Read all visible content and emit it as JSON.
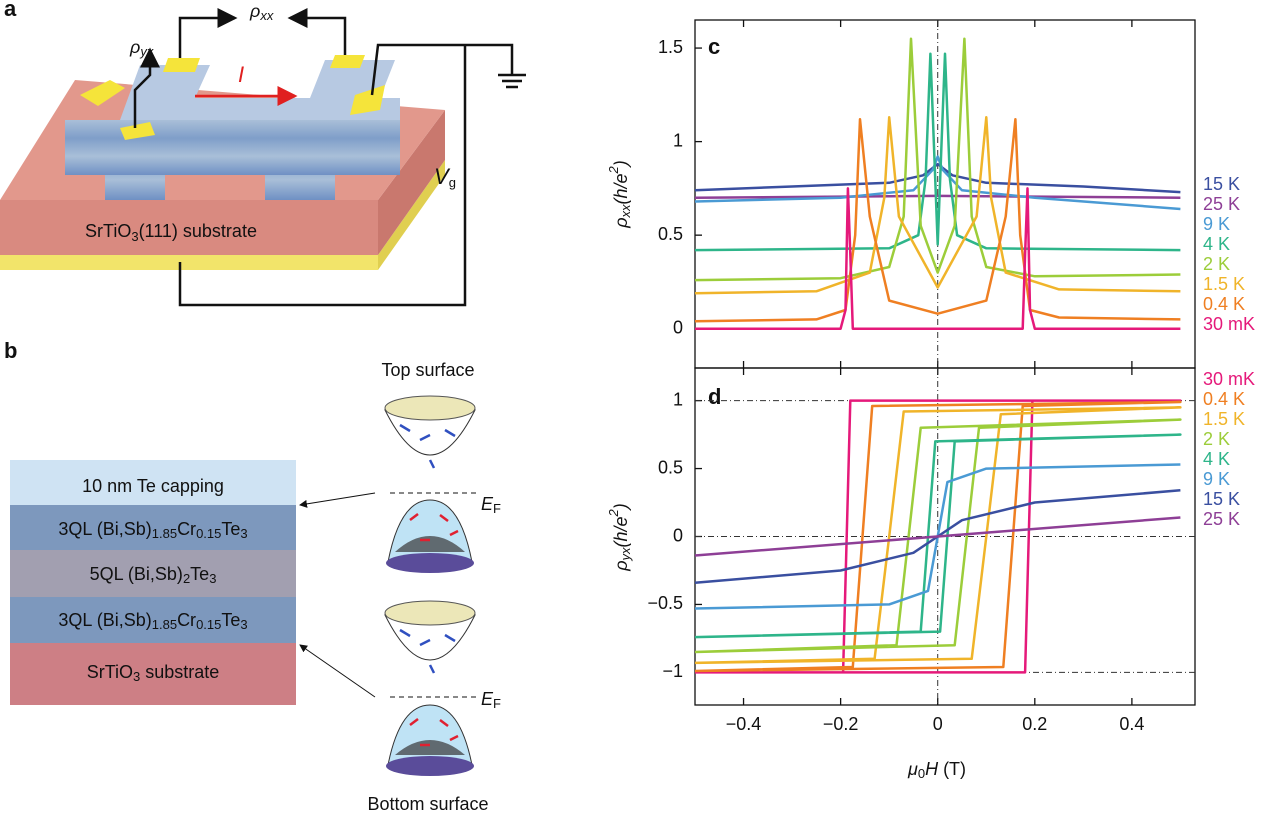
{
  "panel_a": {
    "label": "a",
    "rho_yx": [
      "ρ",
      "yx"
    ],
    "rho_xx": [
      "ρ",
      "xx"
    ],
    "current": "I",
    "gate": [
      "V",
      "g"
    ],
    "substrate": [
      "SrTiO",
      "3",
      "(111) substrate"
    ]
  },
  "panel_b": {
    "label": "b",
    "layers": [
      [
        "10 nm Te capping"
      ],
      [
        "3QL (Bi,Sb)",
        "1.85",
        "Cr",
        "0.15",
        "Te",
        "3"
      ],
      [
        "5QL (Bi,Sb)",
        "2",
        "Te",
        "3"
      ],
      [
        "3QL (Bi,Sb)",
        "1.85",
        "Cr",
        "0.15",
        "Te",
        "3"
      ],
      [
        "SrTiO",
        "3",
        " substrate"
      ]
    ],
    "top_surface": "Top surface",
    "bottom_surface": "Bottom surface",
    "fermi_top": [
      "E",
      "F"
    ],
    "fermi_bottom": [
      "E",
      "F"
    ]
  },
  "chart_data": [
    {
      "type": "line",
      "panel": "c",
      "ylabel": [
        "ρ",
        "xx",
        "(h/e",
        "2",
        ")"
      ],
      "xlim": [
        -0.5,
        0.53
      ],
      "ylim": [
        -0.21,
        1.65
      ],
      "yticks": [
        0,
        0.5,
        1,
        1.5
      ],
      "vline": 0,
      "series": [
        {
          "name": "15 K",
          "color": "#3a4fa0",
          "x": [
            -0.5,
            -0.3,
            -0.1,
            -0.03,
            0,
            0.03,
            0.1,
            0.3,
            0.5
          ],
          "values": [
            0.74,
            0.76,
            0.78,
            0.82,
            0.88,
            0.82,
            0.78,
            0.76,
            0.73
          ]
        },
        {
          "name": "25 K",
          "color": "#8e3f96",
          "x": [
            -0.5,
            0,
            0.5
          ],
          "values": [
            0.7,
            0.71,
            0.7
          ]
        },
        {
          "name": "9 K",
          "color": "#4a9ad4",
          "x": [
            -0.5,
            -0.2,
            -0.05,
            -0.01,
            0,
            0.01,
            0.05,
            0.2,
            0.5
          ],
          "values": [
            0.68,
            0.7,
            0.74,
            0.85,
            0.92,
            0.85,
            0.74,
            0.7,
            0.64
          ]
        },
        {
          "name": "4 K",
          "color": "#2eb58a",
          "x": [
            -0.5,
            -0.1,
            -0.04,
            -0.025,
            -0.015,
            -0.008,
            0,
            0.008,
            0.015,
            0.025,
            0.04,
            0.1,
            0.5
          ],
          "values": [
            0.42,
            0.43,
            0.5,
            0.8,
            1.47,
            1.0,
            0.45,
            1.0,
            1.47,
            0.8,
            0.5,
            0.43,
            0.42
          ]
        },
        {
          "name": "2 K",
          "color": "#9ccd3a",
          "x": [
            -0.5,
            -0.2,
            -0.1,
            -0.07,
            -0.055,
            -0.035,
            0,
            0.035,
            0.055,
            0.07,
            0.1,
            0.2,
            0.5
          ],
          "values": [
            0.26,
            0.27,
            0.33,
            0.6,
            1.55,
            0.55,
            0.3,
            0.55,
            1.55,
            0.6,
            0.33,
            0.28,
            0.29
          ]
        },
        {
          "name": "1.5 K",
          "color": "#f0b42a",
          "x": [
            -0.5,
            -0.25,
            -0.14,
            -0.11,
            -0.1,
            -0.08,
            0,
            0.08,
            0.1,
            0.11,
            0.14,
            0.25,
            0.5
          ],
          "values": [
            0.19,
            0.2,
            0.3,
            0.7,
            1.13,
            0.6,
            0.22,
            0.6,
            1.13,
            0.7,
            0.3,
            0.21,
            0.2
          ]
        },
        {
          "name": "0.4 K",
          "color": "#ef7f22",
          "x": [
            -0.5,
            -0.25,
            -0.19,
            -0.17,
            -0.16,
            -0.14,
            -0.1,
            0,
            0.1,
            0.14,
            0.16,
            0.17,
            0.19,
            0.25,
            0.5
          ],
          "values": [
            0.04,
            0.05,
            0.1,
            0.5,
            1.12,
            0.6,
            0.15,
            0.08,
            0.15,
            0.6,
            1.12,
            0.5,
            0.1,
            0.06,
            0.05
          ]
        },
        {
          "name": "30 mK",
          "color": "#e5197a",
          "x": [
            -0.5,
            -0.2,
            -0.19,
            -0.185,
            -0.18,
            -0.175,
            0.175,
            0.18,
            0.185,
            0.19,
            0.2,
            0.5
          ],
          "values": [
            0,
            0,
            0.1,
            0.75,
            0.4,
            0,
            0,
            0.4,
            0.75,
            0.1,
            0,
            0
          ]
        }
      ]
    },
    {
      "type": "line",
      "panel": "d",
      "ylabel": [
        "ρ",
        "yx",
        "(h/e",
        "2",
        ")"
      ],
      "xlabel": [
        "μ",
        "0",
        "H",
        " (T)"
      ],
      "xlim": [
        -0.5,
        0.53
      ],
      "ylim": [
        -1.24,
        1.24
      ],
      "yticks": [
        {
          "value": -1,
          "label": "−1"
        },
        {
          "value": -0.5,
          "label": "−0.5"
        },
        0,
        0.5,
        1
      ],
      "xticks": [
        {
          "value": -0.4,
          "label": "−0.4"
        },
        {
          "value": -0.2,
          "label": "−0.2"
        },
        0,
        0.2,
        0.4
      ],
      "vline": 0,
      "hlines": [
        1,
        0,
        -1
      ],
      "series": [
        {
          "name": "30 mK",
          "color": "#e5197a",
          "x": [
            -0.5,
            0.18,
            0.195,
            0.5,
            -0.18,
            -0.195,
            -0.5
          ],
          "values": [
            -1,
            -1,
            1,
            1,
            1,
            -1,
            -1
          ]
        },
        {
          "name": "0.4 K",
          "color": "#ef7f22",
          "x": [
            -0.5,
            0.135,
            0.155,
            0.175,
            0.5,
            -0.135,
            -0.155,
            -0.175,
            -0.5
          ],
          "values": [
            -0.99,
            -0.96,
            0,
            0.96,
            0.99,
            0.96,
            0,
            -0.96,
            -0.99
          ]
        },
        {
          "name": "1.5 K",
          "color": "#f0b42a",
          "x": [
            -0.5,
            0.07,
            0.1,
            0.13,
            0.5,
            -0.07,
            -0.1,
            -0.13,
            -0.5
          ],
          "values": [
            -0.93,
            -0.9,
            0,
            0.9,
            0.95,
            0.92,
            0,
            -0.9,
            -0.93
          ]
        },
        {
          "name": "2 K",
          "color": "#9ccd3a",
          "x": [
            -0.5,
            0.035,
            0.06,
            0.085,
            0.5,
            -0.035,
            -0.06,
            -0.085,
            -0.5
          ],
          "values": [
            -0.85,
            -0.8,
            0,
            0.8,
            0.86,
            0.8,
            0,
            -0.8,
            -0.85
          ]
        },
        {
          "name": "4 K",
          "color": "#2eb58a",
          "x": [
            -0.5,
            0.005,
            0.02,
            0.035,
            0.5,
            -0.005,
            -0.02,
            -0.035,
            -0.5
          ],
          "values": [
            -0.74,
            -0.7,
            0,
            0.7,
            0.75,
            0.7,
            0,
            -0.7,
            -0.74
          ]
        },
        {
          "name": "9 K",
          "color": "#4a9ad4",
          "x": [
            -0.5,
            -0.1,
            -0.02,
            0,
            0.02,
            0.1,
            0.5
          ],
          "values": [
            -0.53,
            -0.5,
            -0.4,
            0,
            0.4,
            0.5,
            0.53
          ]
        },
        {
          "name": "15 K",
          "color": "#3a4fa0",
          "x": [
            -0.5,
            -0.2,
            -0.05,
            0,
            0.05,
            0.2,
            0.5
          ],
          "values": [
            -0.34,
            -0.25,
            -0.12,
            0,
            0.12,
            0.25,
            0.34
          ]
        },
        {
          "name": "25 K",
          "color": "#8e3f96",
          "x": [
            -0.5,
            0.5
          ],
          "values": [
            -0.14,
            0.14
          ]
        }
      ]
    }
  ]
}
